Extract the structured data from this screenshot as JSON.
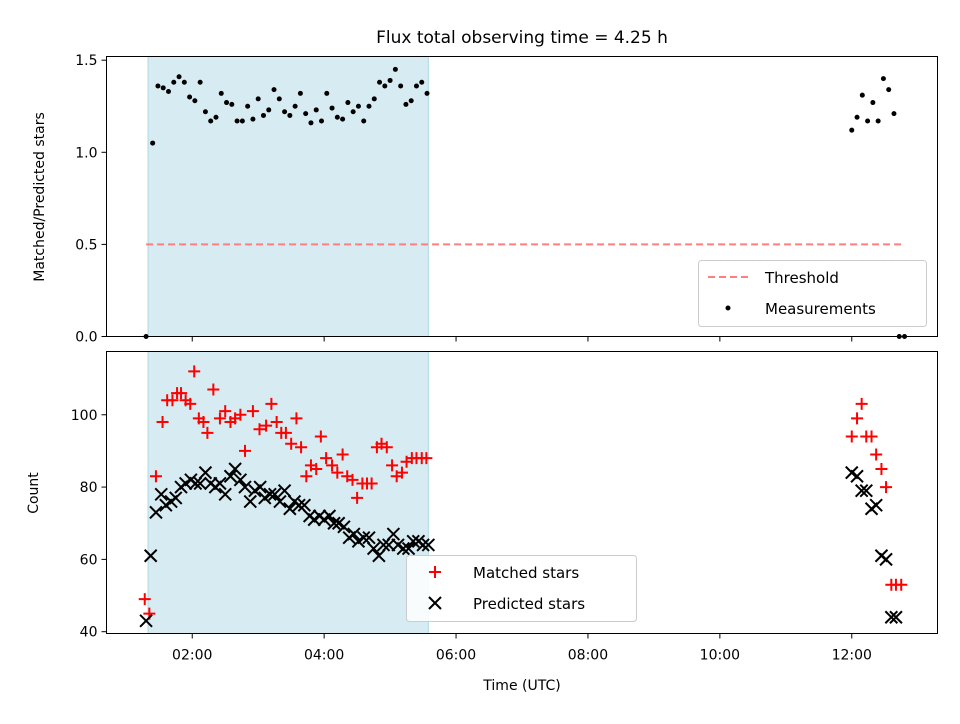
{
  "chart_data": [
    {
      "type": "scatter",
      "title": "Flux total observing time = 4.25 h",
      "ylabel": "Matched/Predicted stars",
      "xlabel": "",
      "xlim": [
        0.7,
        13.3
      ],
      "ylim": [
        0,
        1.52
      ],
      "yticks": [
        0.0,
        0.5,
        1.0,
        1.5
      ],
      "ytick_labels": [
        "0.0",
        "0.5",
        "1.0",
        "1.5"
      ],
      "xticks": [
        2,
        4,
        6,
        8,
        10,
        12
      ],
      "shaded_span": [
        1.33,
        5.58
      ],
      "shaded_color": "#add8e6",
      "threshold": {
        "name": "Threshold",
        "y": 0.5,
        "x_range": [
          1.3,
          12.8
        ],
        "color": "#ff7f7f"
      },
      "legend_position": "lower right",
      "series": [
        {
          "name": "Measurements",
          "marker": "dot",
          "color": "#000000",
          "x": [
            1.3,
            1.4,
            1.48,
            1.56,
            1.64,
            1.72,
            1.8,
            1.88,
            1.96,
            2.04,
            2.12,
            2.2,
            2.28,
            2.36,
            2.44,
            2.52,
            2.6,
            2.68,
            2.76,
            2.84,
            2.92,
            3.0,
            3.08,
            3.16,
            3.24,
            3.32,
            3.4,
            3.48,
            3.56,
            3.64,
            3.72,
            3.8,
            3.88,
            3.96,
            4.04,
            4.12,
            4.2,
            4.28,
            4.36,
            4.44,
            4.52,
            4.6,
            4.68,
            4.76,
            4.84,
            4.92,
            5.0,
            5.08,
            5.16,
            5.24,
            5.32,
            5.4,
            5.48,
            5.56,
            12.0,
            12.08,
            12.16,
            12.24,
            12.32,
            12.4,
            12.48,
            12.56,
            12.64,
            12.72,
            12.8
          ],
          "y": [
            0.0,
            1.05,
            1.36,
            1.35,
            1.33,
            1.38,
            1.41,
            1.38,
            1.3,
            1.28,
            1.38,
            1.22,
            1.17,
            1.19,
            1.32,
            1.27,
            1.26,
            1.17,
            1.17,
            1.25,
            1.18,
            1.29,
            1.2,
            1.23,
            1.34,
            1.29,
            1.22,
            1.2,
            1.25,
            1.32,
            1.21,
            1.16,
            1.23,
            1.17,
            1.32,
            1.24,
            1.19,
            1.18,
            1.27,
            1.22,
            1.25,
            1.17,
            1.25,
            1.29,
            1.38,
            1.36,
            1.39,
            1.45,
            1.36,
            1.26,
            1.28,
            1.36,
            1.38,
            1.32,
            1.12,
            1.19,
            1.31,
            1.17,
            1.27,
            1.17,
            1.4,
            1.34,
            1.21,
            0.0,
            0.0
          ]
        }
      ]
    },
    {
      "type": "scatter",
      "title": "",
      "ylabel": "Count",
      "xlabel": "Time (UTC)",
      "xlim": [
        0.7,
        13.3
      ],
      "ylim": [
        39.5,
        117.5
      ],
      "yticks": [
        40,
        60,
        80,
        100
      ],
      "ytick_labels": [
        "40",
        "60",
        "80",
        "100"
      ],
      "xticks": [
        2,
        4,
        6,
        8,
        10,
        12
      ],
      "xtick_labels": [
        "02:00",
        "04:00",
        "06:00",
        "08:00",
        "10:00",
        "12:00"
      ],
      "shaded_span": [
        1.33,
        5.58
      ],
      "shaded_color": "#add8e6",
      "legend_position": "lower center",
      "series": [
        {
          "name": "Matched stars",
          "marker": "plus",
          "color": "#ff0000",
          "x": [
            1.28,
            1.35,
            1.45,
            1.55,
            1.62,
            1.7,
            1.77,
            1.83,
            1.9,
            1.97,
            2.03,
            2.1,
            2.17,
            2.23,
            2.32,
            2.42,
            2.5,
            2.58,
            2.65,
            2.73,
            2.8,
            2.92,
            3.02,
            3.12,
            3.2,
            3.28,
            3.35,
            3.42,
            3.5,
            3.58,
            3.65,
            3.73,
            3.8,
            3.88,
            3.95,
            4.03,
            4.12,
            4.2,
            4.28,
            4.35,
            4.43,
            4.5,
            4.58,
            4.65,
            4.72,
            4.8,
            4.87,
            4.95,
            5.03,
            5.1,
            5.18,
            5.25,
            5.33,
            5.4,
            5.48,
            5.55,
            12.0,
            12.08,
            12.15,
            12.22,
            12.3,
            12.37,
            12.45,
            12.52,
            12.6,
            12.67,
            12.75
          ],
          "y": [
            49,
            45,
            83,
            98,
            104,
            104,
            106,
            106,
            104,
            103,
            112,
            99,
            98,
            95,
            107,
            99,
            101,
            98,
            99,
            100,
            90,
            101,
            96,
            97,
            103,
            98,
            95,
            95,
            92,
            99,
            91,
            83,
            86,
            85,
            94,
            88,
            86,
            84,
            89,
            83,
            82,
            77,
            81,
            81,
            81,
            91,
            92,
            91,
            86,
            83,
            84,
            87,
            88,
            88,
            88,
            88,
            94,
            99,
            103,
            94,
            94,
            89,
            85,
            80,
            53,
            53,
            53
          ]
        },
        {
          "name": "Predicted stars",
          "marker": "x",
          "color": "#000000",
          "x": [
            1.3,
            1.37,
            1.45,
            1.53,
            1.6,
            1.68,
            1.75,
            1.83,
            1.9,
            1.98,
            2.05,
            2.12,
            2.2,
            2.28,
            2.35,
            2.42,
            2.5,
            2.58,
            2.65,
            2.73,
            2.8,
            2.88,
            2.95,
            3.03,
            3.1,
            3.18,
            3.25,
            3.33,
            3.4,
            3.48,
            3.55,
            3.62,
            3.7,
            3.78,
            3.85,
            3.93,
            4.0,
            4.08,
            4.15,
            4.22,
            4.3,
            4.38,
            4.45,
            4.52,
            4.6,
            4.68,
            4.75,
            4.83,
            4.9,
            4.98,
            5.05,
            5.12,
            5.2,
            5.28,
            5.35,
            5.43,
            5.5,
            5.58,
            12.0,
            12.08,
            12.15,
            12.22,
            12.3,
            12.37,
            12.45,
            12.52,
            12.6,
            12.67
          ],
          "y": [
            43,
            61,
            73,
            78,
            75,
            76,
            77,
            80,
            81,
            82,
            81,
            81,
            84,
            81,
            80,
            81,
            78,
            83,
            85,
            82,
            80,
            76,
            79,
            80,
            77,
            78,
            78,
            76,
            79,
            74,
            76,
            75,
            75,
            72,
            71,
            72,
            71,
            72,
            70,
            70,
            69,
            66,
            67,
            65,
            66,
            66,
            63,
            61,
            64,
            64,
            67,
            64,
            63,
            63,
            65,
            65,
            64,
            64,
            84,
            83,
            79,
            79,
            74,
            75,
            61,
            60,
            44,
            44
          ]
        }
      ]
    }
  ]
}
